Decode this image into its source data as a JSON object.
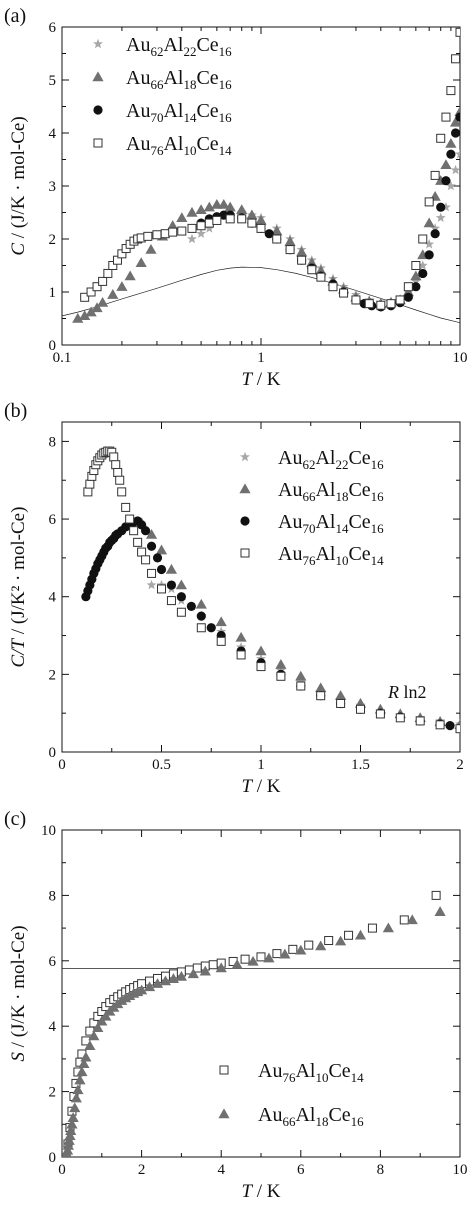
{
  "chart_data": [
    {
      "panel_label": "(a)",
      "type": "scatter",
      "xscale": "log",
      "xlim": [
        0.1,
        10
      ],
      "ylim": [
        0,
        6
      ],
      "xticks": [
        0.1,
        1,
        10
      ],
      "xtick_labels": [
        "0.1",
        "1",
        "10"
      ],
      "yticks": [
        0,
        1,
        2,
        3,
        4,
        5,
        6
      ],
      "ytick_labels": [
        "0",
        "1",
        "2",
        "3",
        "4",
        "5",
        "6"
      ],
      "xlabel": {
        "var": "T",
        "unit": " / K"
      },
      "ylabel": {
        "var": "C",
        "unit": " / (J/K · mol-Ce)"
      },
      "legend_position": "top-left",
      "series": [
        {
          "legend": [
            "Au",
            "62",
            "Al",
            "22",
            "Ce",
            "16"
          ],
          "marker": "star",
          "color": "#a8a8a8",
          "x": [
            0.45,
            0.5,
            0.55,
            0.6,
            0.7,
            0.8,
            0.9,
            1.0,
            1.2,
            1.4,
            1.6,
            1.8,
            2.0,
            2.3,
            2.6,
            3.0,
            3.5,
            4.0,
            4.5,
            5.0,
            5.5,
            6.0,
            6.5,
            7.0,
            7.5,
            8.0,
            8.5,
            9.0,
            9.5,
            10.0
          ],
          "y": [
            2.0,
            2.1,
            2.2,
            2.35,
            2.45,
            2.5,
            2.45,
            2.4,
            2.2,
            2.0,
            1.8,
            1.6,
            1.45,
            1.25,
            1.1,
            0.95,
            0.85,
            0.8,
            0.82,
            0.85,
            1.0,
            1.2,
            1.5,
            1.9,
            2.2,
            2.4,
            2.6,
            3.0,
            3.3,
            3.6
          ]
        },
        {
          "legend": [
            "Au",
            "66",
            "Al",
            "18",
            "Ce",
            "16"
          ],
          "marker": "triangle",
          "color": "#707070",
          "x": [
            0.12,
            0.13,
            0.14,
            0.15,
            0.16,
            0.18,
            0.2,
            0.22,
            0.25,
            0.28,
            0.32,
            0.36,
            0.4,
            0.45,
            0.5,
            0.55,
            0.6,
            0.65,
            0.7,
            0.8,
            0.9,
            1.0,
            1.2,
            1.4,
            1.6,
            1.8,
            2.0,
            2.3,
            2.6,
            3.0,
            3.5,
            4.0,
            4.5,
            5.0,
            5.5,
            6.0,
            6.5,
            7.0,
            7.5,
            8.0,
            8.5,
            9.0,
            9.5,
            10.0
          ],
          "y": [
            0.5,
            0.55,
            0.62,
            0.7,
            0.8,
            0.95,
            1.1,
            1.3,
            1.55,
            1.8,
            2.05,
            2.25,
            2.4,
            2.5,
            2.55,
            2.6,
            2.65,
            2.65,
            2.6,
            2.55,
            2.45,
            2.35,
            2.15,
            1.95,
            1.75,
            1.55,
            1.4,
            1.2,
            1.05,
            0.9,
            0.82,
            0.78,
            0.8,
            0.85,
            1.0,
            1.3,
            1.7,
            2.3,
            2.8,
            3.1,
            3.4,
            3.8,
            4.2,
            4.4
          ]
        },
        {
          "legend": [
            "Au",
            "70",
            "Al",
            "14",
            "Ce",
            "16"
          ],
          "marker": "circle",
          "color": "#111111",
          "x": [
            0.5,
            0.55,
            0.6,
            0.65,
            0.7,
            0.8,
            0.9,
            1.0,
            1.1,
            1.2,
            1.4,
            1.6,
            1.8,
            2.0,
            2.3,
            2.6,
            3.0,
            3.3,
            3.6,
            4.0,
            4.5,
            5.0,
            5.5,
            6.0,
            6.5,
            7.0,
            7.5,
            8.0,
            8.5,
            9.0,
            9.5,
            10.0
          ],
          "y": [
            2.3,
            2.38,
            2.42,
            2.45,
            2.45,
            2.4,
            2.3,
            2.2,
            2.1,
            2.0,
            1.8,
            1.6,
            1.45,
            1.3,
            1.15,
            1.0,
            0.85,
            0.78,
            0.74,
            0.72,
            0.74,
            0.8,
            0.9,
            1.1,
            1.35,
            1.7,
            2.1,
            2.6,
            3.1,
            3.6,
            4.0,
            4.3
          ]
        },
        {
          "legend": [
            "Au",
            "76",
            "Al",
            "10",
            "Ce",
            "14"
          ],
          "marker": "square-open",
          "color": "#333333",
          "x": [
            0.13,
            0.14,
            0.15,
            0.16,
            0.17,
            0.18,
            0.19,
            0.2,
            0.21,
            0.22,
            0.23,
            0.24,
            0.25,
            0.27,
            0.3,
            0.33,
            0.36,
            0.4,
            0.45,
            0.5,
            0.55,
            0.6,
            0.7,
            0.8,
            0.9,
            1.0,
            1.2,
            1.4,
            1.6,
            1.8,
            2.0,
            2.3,
            2.6,
            3.0,
            3.5,
            4.0,
            4.5,
            5.0,
            5.5,
            6.0,
            6.5,
            7.0,
            7.5,
            8.0,
            8.5,
            9.0,
            9.5,
            10.0
          ],
          "y": [
            0.9,
            1.0,
            1.1,
            1.2,
            1.35,
            1.5,
            1.6,
            1.72,
            1.82,
            1.9,
            1.96,
            2.0,
            2.02,
            2.05,
            2.08,
            2.1,
            2.13,
            2.15,
            2.2,
            2.25,
            2.3,
            2.35,
            2.38,
            2.38,
            2.3,
            2.2,
            2.0,
            1.8,
            1.6,
            1.42,
            1.28,
            1.1,
            0.98,
            0.85,
            0.78,
            0.75,
            0.78,
            0.85,
            1.1,
            1.5,
            2.0,
            2.7,
            3.2,
            3.9,
            4.3,
            4.8,
            5.4,
            5.9
          ]
        }
      ],
      "curve": {
        "x": [
          0.1,
          0.12,
          0.15,
          0.2,
          0.25,
          0.3,
          0.4,
          0.5,
          0.6,
          0.7,
          0.8,
          1.0,
          1.2,
          1.5,
          2.0,
          2.5,
          3.0,
          4.0,
          5.0,
          6.0,
          7.0,
          8.0,
          10.0
        ],
        "y": [
          0.55,
          0.62,
          0.72,
          0.87,
          0.98,
          1.07,
          1.22,
          1.33,
          1.41,
          1.45,
          1.47,
          1.46,
          1.42,
          1.35,
          1.23,
          1.12,
          1.03,
          0.88,
          0.76,
          0.66,
          0.58,
          0.51,
          0.42
        ]
      }
    },
    {
      "panel_label": "(b)",
      "type": "scatter",
      "xscale": "linear",
      "xlim": [
        0,
        2
      ],
      "ylim": [
        0,
        8.5
      ],
      "xticks": [
        0,
        0.5,
        1,
        1.5,
        2
      ],
      "xtick_labels": [
        "0",
        "0.5",
        "1",
        "1.5",
        "2"
      ],
      "yticks": [
        0,
        2,
        4,
        6,
        8
      ],
      "ytick_labels": [
        "0",
        "2",
        "4",
        "6",
        "8"
      ],
      "xlabel": {
        "var": "T",
        "unit": " / K"
      },
      "ylabel": {
        "var": "C/T",
        "unit": " / (J/K² · mol-Ce)"
      },
      "legend_position": "top-right",
      "series": [
        {
          "legend": [
            "Au",
            "62",
            "Al",
            "22",
            "Ce",
            "16"
          ],
          "marker": "star",
          "color": "#a8a8a8",
          "x": [
            0.45,
            0.5,
            0.55,
            0.6,
            0.7,
            0.8,
            0.9,
            1.0,
            1.1,
            1.2,
            1.3,
            1.4,
            1.5,
            1.6,
            1.7,
            1.8,
            1.9,
            2.0
          ],
          "y": [
            4.3,
            4.3,
            4.2,
            3.9,
            3.5,
            3.1,
            2.7,
            2.4,
            2.1,
            1.8,
            1.55,
            1.35,
            1.2,
            1.05,
            0.95,
            0.88,
            0.8,
            0.72
          ]
        },
        {
          "legend": [
            "Au",
            "66",
            "Al",
            "18",
            "Ce",
            "16"
          ],
          "marker": "triangle",
          "color": "#707070",
          "x": [
            0.4,
            0.45,
            0.5,
            0.55,
            0.6,
            0.7,
            0.8,
            0.9,
            1.0,
            1.1,
            1.2,
            1.3,
            1.4,
            1.5,
            1.6,
            1.7,
            1.8,
            1.9,
            2.0
          ],
          "y": [
            5.9,
            5.6,
            5.2,
            4.7,
            4.3,
            3.8,
            3.35,
            2.95,
            2.6,
            2.25,
            1.95,
            1.65,
            1.45,
            1.25,
            1.1,
            0.98,
            0.88,
            0.78,
            0.7
          ]
        },
        {
          "legend": [
            "Au",
            "70",
            "Al",
            "14",
            "Ce",
            "16"
          ],
          "marker": "circle",
          "color": "#111111",
          "x": [
            0.12,
            0.13,
            0.14,
            0.15,
            0.16,
            0.17,
            0.18,
            0.19,
            0.2,
            0.21,
            0.22,
            0.23,
            0.24,
            0.25,
            0.26,
            0.27,
            0.28,
            0.3,
            0.32,
            0.34,
            0.36,
            0.38,
            0.4,
            0.42,
            0.45,
            0.48,
            0.5,
            0.55,
            0.6,
            0.65,
            0.7,
            0.75,
            0.8,
            0.9,
            1.0,
            1.1,
            1.2,
            1.3,
            1.4,
            1.5,
            1.6,
            1.7,
            1.8,
            1.9,
            1.95
          ],
          "y": [
            4.0,
            4.15,
            4.3,
            4.45,
            4.6,
            4.72,
            4.85,
            4.95,
            5.05,
            5.15,
            5.25,
            5.3,
            5.4,
            5.45,
            5.5,
            5.58,
            5.62,
            5.7,
            5.8,
            5.85,
            5.92,
            5.95,
            5.85,
            5.7,
            5.3,
            5.0,
            4.7,
            4.3,
            4.0,
            3.75,
            3.5,
            3.2,
            3.0,
            2.6,
            2.3,
            2.0,
            1.7,
            1.45,
            1.25,
            1.1,
            1.0,
            0.9,
            0.8,
            0.72,
            0.68
          ]
        },
        {
          "legend": [
            "Au",
            "76",
            "Al",
            "10",
            "Ce",
            "14"
          ],
          "marker": "square-open",
          "color": "#333333",
          "x": [
            0.13,
            0.14,
            0.15,
            0.16,
            0.17,
            0.18,
            0.19,
            0.2,
            0.21,
            0.22,
            0.23,
            0.24,
            0.25,
            0.26,
            0.27,
            0.28,
            0.29,
            0.3,
            0.32,
            0.34,
            0.36,
            0.38,
            0.4,
            0.42,
            0.45,
            0.5,
            0.55,
            0.6,
            0.7,
            0.8,
            0.9,
            1.0,
            1.1,
            1.2,
            1.3,
            1.4,
            1.5,
            1.6,
            1.7,
            1.8,
            1.9,
            2.0
          ],
          "y": [
            6.7,
            6.9,
            7.1,
            7.25,
            7.4,
            7.5,
            7.58,
            7.65,
            7.7,
            7.72,
            7.75,
            7.75,
            7.72,
            7.6,
            7.4,
            7.2,
            7.0,
            6.7,
            6.3,
            6.0,
            5.7,
            5.4,
            5.15,
            4.95,
            4.6,
            4.2,
            3.9,
            3.6,
            3.2,
            2.85,
            2.5,
            2.2,
            1.95,
            1.7,
            1.45,
            1.25,
            1.1,
            0.98,
            0.88,
            0.8,
            0.7,
            0.6
          ]
        }
      ]
    },
    {
      "panel_label": "(c)",
      "type": "scatter",
      "xscale": "linear",
      "xlim": [
        0,
        10
      ],
      "ylim": [
        0,
        10
      ],
      "xticks": [
        0,
        2,
        4,
        6,
        8,
        10
      ],
      "xtick_labels": [
        "0",
        "2",
        "4",
        "6",
        "8",
        "10"
      ],
      "yticks": [
        0,
        2,
        4,
        6,
        8,
        10
      ],
      "ytick_labels": [
        "0",
        "2",
        "4",
        "6",
        "8",
        "10"
      ],
      "xlabel": {
        "var": "T",
        "unit": " / K"
      },
      "ylabel": {
        "var": "S",
        "unit": " / (J/K · mol-Ce)"
      },
      "legend_position": "bottom-right",
      "hline": {
        "y": 5.76,
        "label_var": "R",
        "label_text": " ln2"
      },
      "series": [
        {
          "legend": [
            "Au",
            "76",
            "Al",
            "10",
            "Ce",
            "14"
          ],
          "marker": "square-open",
          "color": "#333333",
          "x": [
            0.15,
            0.2,
            0.25,
            0.3,
            0.35,
            0.4,
            0.45,
            0.5,
            0.6,
            0.7,
            0.8,
            0.9,
            1.0,
            1.1,
            1.2,
            1.3,
            1.4,
            1.5,
            1.6,
            1.7,
            1.8,
            1.9,
            2.0,
            2.2,
            2.4,
            2.6,
            2.8,
            3.0,
            3.2,
            3.4,
            3.6,
            3.8,
            4.0,
            4.3,
            4.6,
            5.0,
            5.4,
            5.8,
            6.2,
            6.7,
            7.2,
            7.8,
            8.6,
            9.4
          ],
          "y": [
            0.4,
            0.9,
            1.4,
            1.85,
            2.25,
            2.6,
            2.9,
            3.15,
            3.55,
            3.85,
            4.1,
            4.3,
            4.45,
            4.6,
            4.72,
            4.82,
            4.9,
            4.98,
            5.05,
            5.12,
            5.18,
            5.24,
            5.3,
            5.38,
            5.46,
            5.53,
            5.6,
            5.66,
            5.72,
            5.78,
            5.84,
            5.88,
            5.93,
            5.98,
            6.05,
            6.12,
            6.22,
            6.35,
            6.48,
            6.62,
            6.78,
            7.0,
            7.25,
            8.0
          ]
        },
        {
          "legend": [
            "Au",
            "66",
            "Al",
            "18",
            "Ce",
            "16"
          ],
          "marker": "triangle",
          "color": "#707070",
          "x": [
            0.12,
            0.14,
            0.16,
            0.18,
            0.2,
            0.22,
            0.25,
            0.28,
            0.32,
            0.36,
            0.4,
            0.45,
            0.5,
            0.55,
            0.6,
            0.7,
            0.8,
            0.9,
            1.0,
            1.1,
            1.2,
            1.3,
            1.4,
            1.5,
            1.6,
            1.7,
            1.8,
            1.9,
            2.0,
            2.2,
            2.4,
            2.6,
            2.8,
            3.0,
            3.3,
            3.6,
            4.0,
            4.4,
            4.8,
            5.2,
            5.6,
            6.0,
            6.5,
            7.0,
            7.5,
            8.2,
            8.8,
            9.5
          ],
          "y": [
            0.1,
            0.2,
            0.35,
            0.5,
            0.65,
            0.8,
            1.0,
            1.2,
            1.5,
            1.8,
            2.05,
            2.35,
            2.6,
            2.85,
            3.05,
            3.4,
            3.7,
            3.95,
            4.15,
            4.3,
            4.45,
            4.57,
            4.68,
            4.78,
            4.86,
            4.93,
            5.0,
            5.05,
            5.1,
            5.2,
            5.3,
            5.38,
            5.45,
            5.52,
            5.6,
            5.68,
            5.78,
            5.88,
            5.98,
            6.08,
            6.2,
            6.32,
            6.45,
            6.6,
            6.78,
            7.0,
            7.25,
            7.5
          ]
        }
      ]
    }
  ]
}
